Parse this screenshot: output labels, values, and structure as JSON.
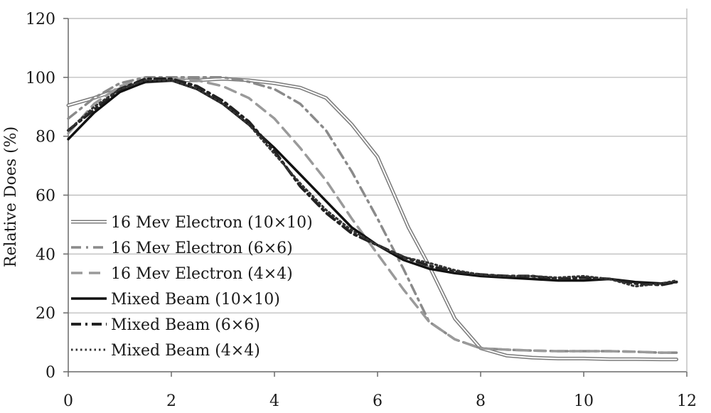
{
  "chart_data": {
    "type": "line",
    "title": "",
    "xlabel": "",
    "ylabel": "Relative Does (%)",
    "xlim": [
      0,
      12
    ],
    "ylim": [
      0,
      120
    ],
    "xticks": [
      "0",
      "2",
      "4",
      "6",
      "8",
      "10",
      "12"
    ],
    "yticks": [
      "0",
      "20",
      "40",
      "60",
      "80",
      "100",
      "120"
    ],
    "grid": "horizontal",
    "legend_position": "left-center",
    "series": [
      {
        "name": "16 Mev Electron (10×10)",
        "style": "double",
        "color": "#7a7a7a",
        "points": [
          [
            0,
            90.5
          ],
          [
            0.5,
            93
          ],
          [
            1,
            96
          ],
          [
            1.5,
            98.5
          ],
          [
            2,
            99
          ],
          [
            2.5,
            99
          ],
          [
            3,
            99.5
          ],
          [
            3.5,
            99
          ],
          [
            4,
            98
          ],
          [
            4.5,
            96.5
          ],
          [
            5,
            93
          ],
          [
            5.5,
            84
          ],
          [
            6,
            73
          ],
          [
            6.3,
            61
          ],
          [
            6.6,
            49
          ],
          [
            7,
            36
          ],
          [
            7.5,
            18
          ],
          [
            8,
            8
          ],
          [
            8.5,
            5.5
          ],
          [
            9,
            4.8
          ],
          [
            9.5,
            4.5
          ],
          [
            10,
            4.5
          ],
          [
            10.5,
            4.3
          ],
          [
            11,
            4.3
          ],
          [
            11.5,
            4.2
          ],
          [
            11.8,
            4.2
          ]
        ]
      },
      {
        "name": "16 Mev Electron (6×6)",
        "style": "dash-dot",
        "color": "#8a8a8a",
        "points": [
          [
            0,
            86
          ],
          [
            0.5,
            93
          ],
          [
            1,
            98
          ],
          [
            1.5,
            100
          ],
          [
            2,
            100
          ],
          [
            2.5,
            100
          ],
          [
            3,
            100
          ],
          [
            3.5,
            98.5
          ],
          [
            4,
            96
          ],
          [
            4.5,
            91
          ],
          [
            5,
            82
          ],
          [
            5.5,
            68
          ],
          [
            6,
            52
          ],
          [
            6.5,
            35
          ],
          [
            7,
            17
          ],
          [
            7.5,
            11
          ],
          [
            8,
            8
          ],
          [
            8.5,
            7.5
          ],
          [
            9,
            7.2
          ],
          [
            9.5,
            7
          ],
          [
            10,
            7
          ],
          [
            10.5,
            7
          ],
          [
            11,
            6.8
          ],
          [
            11.5,
            6.5
          ],
          [
            11.8,
            6.5
          ]
        ]
      },
      {
        "name": "16 Mev Electron (4×4)",
        "style": "dashed",
        "color": "#9a9a9a",
        "points": [
          [
            0,
            81
          ],
          [
            0.5,
            91
          ],
          [
            1,
            97
          ],
          [
            1.5,
            99.5
          ],
          [
            2,
            99.5
          ],
          [
            2.5,
            99
          ],
          [
            3,
            97
          ],
          [
            3.5,
            93
          ],
          [
            4,
            86
          ],
          [
            4.5,
            76
          ],
          [
            5,
            65
          ],
          [
            5.5,
            52
          ],
          [
            6,
            40
          ],
          [
            6.5,
            28
          ],
          [
            7,
            17
          ],
          [
            7.5,
            11
          ],
          [
            8,
            8
          ],
          [
            8.5,
            7.5
          ],
          [
            9,
            7.2
          ],
          [
            9.5,
            7
          ],
          [
            10,
            7
          ],
          [
            10.5,
            7
          ],
          [
            11,
            6.8
          ],
          [
            11.5,
            6.5
          ],
          [
            11.8,
            6.5
          ]
        ]
      },
      {
        "name": "Mixed Beam (10×10)",
        "style": "solid",
        "color": "#111111",
        "points": [
          [
            0,
            79
          ],
          [
            0.5,
            88
          ],
          [
            1,
            95
          ],
          [
            1.5,
            98.5
          ],
          [
            2,
            99
          ],
          [
            2.5,
            96
          ],
          [
            3,
            91
          ],
          [
            3.5,
            84
          ],
          [
            4,
            76
          ],
          [
            4.5,
            67
          ],
          [
            5,
            58
          ],
          [
            5.5,
            49
          ],
          [
            6,
            43
          ],
          [
            6.5,
            38
          ],
          [
            7,
            35
          ],
          [
            7.5,
            33.5
          ],
          [
            8,
            32.5
          ],
          [
            8.5,
            32
          ],
          [
            9,
            31.5
          ],
          [
            9.5,
            31
          ],
          [
            10,
            31
          ],
          [
            10.5,
            31.5
          ],
          [
            11,
            30.5
          ],
          [
            11.5,
            30
          ],
          [
            11.8,
            30.5
          ]
        ]
      },
      {
        "name": "Mixed Beam (6×6)",
        "style": "dash-dot-heavy",
        "color": "#222222",
        "points": [
          [
            0,
            82
          ],
          [
            0.5,
            89
          ],
          [
            1,
            96
          ],
          [
            1.5,
            99.5
          ],
          [
            2,
            99.5
          ],
          [
            2.5,
            97
          ],
          [
            3,
            92
          ],
          [
            3.5,
            85
          ],
          [
            4,
            75
          ],
          [
            4.5,
            63
          ],
          [
            5,
            54
          ],
          [
            5.5,
            47
          ],
          [
            6,
            43
          ],
          [
            6.5,
            39
          ],
          [
            7,
            36
          ],
          [
            7.5,
            34
          ],
          [
            8,
            33
          ],
          [
            8.5,
            32.5
          ],
          [
            9,
            32.5
          ],
          [
            9.5,
            31.5
          ],
          [
            10,
            32
          ],
          [
            10.5,
            31.5
          ],
          [
            11,
            30
          ],
          [
            11.5,
            29.5
          ],
          [
            11.8,
            30.5
          ]
        ]
      },
      {
        "name": "Mixed Beam (4×4)",
        "style": "dotted",
        "color": "#333333",
        "points": [
          [
            0,
            82
          ],
          [
            0.5,
            90
          ],
          [
            1,
            96
          ],
          [
            1.5,
            99
          ],
          [
            2,
            99
          ],
          [
            2.5,
            96
          ],
          [
            3,
            91
          ],
          [
            3.5,
            84
          ],
          [
            4,
            74
          ],
          [
            4.5,
            64
          ],
          [
            5,
            55
          ],
          [
            5.5,
            48
          ],
          [
            6,
            43
          ],
          [
            6.5,
            39
          ],
          [
            7,
            37
          ],
          [
            7.5,
            34.5
          ],
          [
            8,
            33
          ],
          [
            8.5,
            32.5
          ],
          [
            9,
            32.5
          ],
          [
            9.5,
            32
          ],
          [
            10,
            32.5
          ],
          [
            10.5,
            31.5
          ],
          [
            11,
            29
          ],
          [
            11.5,
            30
          ],
          [
            11.8,
            31
          ]
        ]
      }
    ]
  }
}
